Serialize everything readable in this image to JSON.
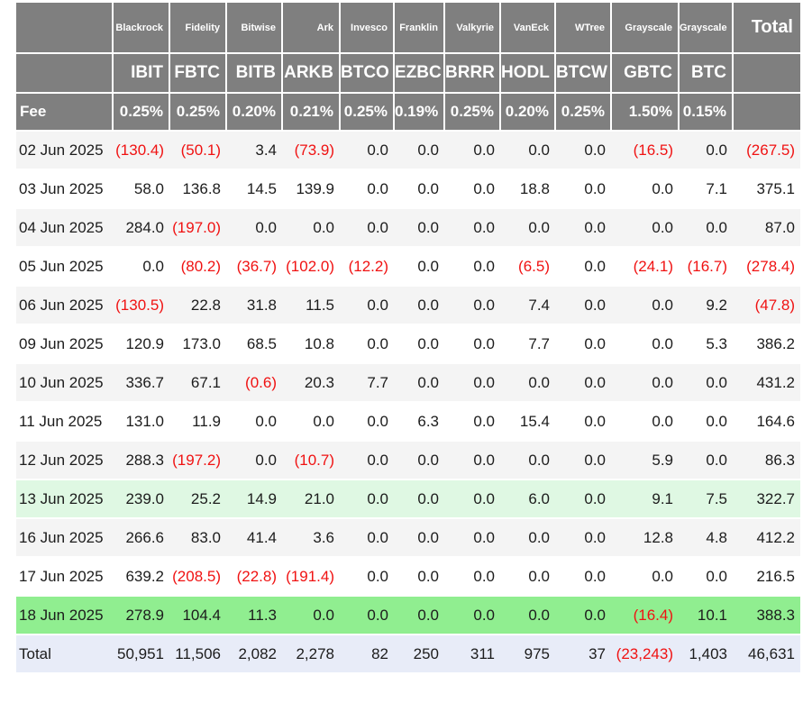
{
  "header": {
    "providers": [
      "",
      "Blackrock",
      "Fidelity",
      "Bitwise",
      "Ark",
      "Invesco",
      "Franklin",
      "Valkyrie",
      "VanEck",
      "WTree",
      "Grayscale",
      "Grayscale",
      "Total"
    ],
    "tickers": [
      "",
      "IBIT",
      "FBTC",
      "BITB",
      "ARKB",
      "BTCO",
      "EZBC",
      "BRRR",
      "HODL",
      "BTCW",
      "GBTC",
      "BTC",
      ""
    ],
    "fees": [
      "Fee",
      "0.25%",
      "0.25%",
      "0.20%",
      "0.21%",
      "0.25%",
      "0.19%",
      "0.25%",
      "0.20%",
      "0.25%",
      "1.50%",
      "0.15%",
      ""
    ]
  },
  "rows": [
    {
      "date": "02 Jun 2025",
      "bg": "gray",
      "values": [
        "(130.4)",
        "(50.1)",
        "3.4",
        "(73.9)",
        "0.0",
        "0.0",
        "0.0",
        "0.0",
        "0.0",
        "(16.5)",
        "0.0",
        "(267.5)"
      ]
    },
    {
      "date": "03 Jun 2025",
      "bg": "white",
      "values": [
        "58.0",
        "136.8",
        "14.5",
        "139.9",
        "0.0",
        "0.0",
        "0.0",
        "18.8",
        "0.0",
        "0.0",
        "7.1",
        "375.1"
      ]
    },
    {
      "date": "04 Jun 2025",
      "bg": "gray",
      "values": [
        "284.0",
        "(197.0)",
        "0.0",
        "0.0",
        "0.0",
        "0.0",
        "0.0",
        "0.0",
        "0.0",
        "0.0",
        "0.0",
        "87.0"
      ]
    },
    {
      "date": "05 Jun 2025",
      "bg": "white",
      "values": [
        "0.0",
        "(80.2)",
        "(36.7)",
        "(102.0)",
        "(12.2)",
        "0.0",
        "0.0",
        "(6.5)",
        "0.0",
        "(24.1)",
        "(16.7)",
        "(278.4)"
      ]
    },
    {
      "date": "06 Jun 2025",
      "bg": "gray",
      "values": [
        "(130.5)",
        "22.8",
        "31.8",
        "11.5",
        "0.0",
        "0.0",
        "0.0",
        "7.4",
        "0.0",
        "0.0",
        "9.2",
        "(47.8)"
      ]
    },
    {
      "date": "09 Jun 2025",
      "bg": "white",
      "values": [
        "120.9",
        "173.0",
        "68.5",
        "10.8",
        "0.0",
        "0.0",
        "0.0",
        "7.7",
        "0.0",
        "0.0",
        "5.3",
        "386.2"
      ]
    },
    {
      "date": "10 Jun 2025",
      "bg": "gray",
      "values": [
        "336.7",
        "67.1",
        "(0.6)",
        "20.3",
        "7.7",
        "0.0",
        "0.0",
        "0.0",
        "0.0",
        "0.0",
        "0.0",
        "431.2"
      ]
    },
    {
      "date": "11 Jun 2025",
      "bg": "white",
      "values": [
        "131.0",
        "11.9",
        "0.0",
        "0.0",
        "0.0",
        "6.3",
        "0.0",
        "15.4",
        "0.0",
        "0.0",
        "0.0",
        "164.6"
      ]
    },
    {
      "date": "12 Jun 2025",
      "bg": "gray",
      "values": [
        "288.3",
        "(197.2)",
        "0.0",
        "(10.7)",
        "0.0",
        "0.0",
        "0.0",
        "0.0",
        "0.0",
        "5.9",
        "0.0",
        "86.3"
      ]
    },
    {
      "date": "13 Jun 2025",
      "bg": "lightgreen",
      "values": [
        "239.0",
        "25.2",
        "14.9",
        "21.0",
        "0.0",
        "0.0",
        "0.0",
        "6.0",
        "0.0",
        "9.1",
        "7.5",
        "322.7"
      ]
    },
    {
      "date": "16 Jun 2025",
      "bg": "gray",
      "values": [
        "266.6",
        "83.0",
        "41.4",
        "3.6",
        "0.0",
        "0.0",
        "0.0",
        "0.0",
        "0.0",
        "12.8",
        "4.8",
        "412.2"
      ]
    },
    {
      "date": "17 Jun 2025",
      "bg": "white",
      "values": [
        "639.2",
        "(208.5)",
        "(22.8)",
        "(191.4)",
        "0.0",
        "0.0",
        "0.0",
        "0.0",
        "0.0",
        "0.0",
        "0.0",
        "216.5"
      ]
    },
    {
      "date": "18 Jun 2025",
      "bg": "green",
      "values": [
        "278.9",
        "104.4",
        "11.3",
        "0.0",
        "0.0",
        "0.0",
        "0.0",
        "0.0",
        "0.0",
        "(16.4)",
        "10.1",
        "388.3"
      ]
    },
    {
      "date": "Total",
      "bg": "total",
      "values": [
        "50,951",
        "11,506",
        "2,082",
        "2,278",
        "82",
        "250",
        "311",
        "975",
        "37",
        "(23,243)",
        "1,403",
        "46,631"
      ]
    }
  ],
  "colors": {
    "header_bg": "#7f7f7f",
    "header_text": "#ffffff",
    "negative": "#f01212",
    "body_text": "#1c1c1c",
    "row_gray": "#f4f4f4",
    "row_white": "#ffffff",
    "row_lightgreen": "#dff8e3",
    "row_green": "#90ee90",
    "row_total": "#e8ecf8"
  }
}
